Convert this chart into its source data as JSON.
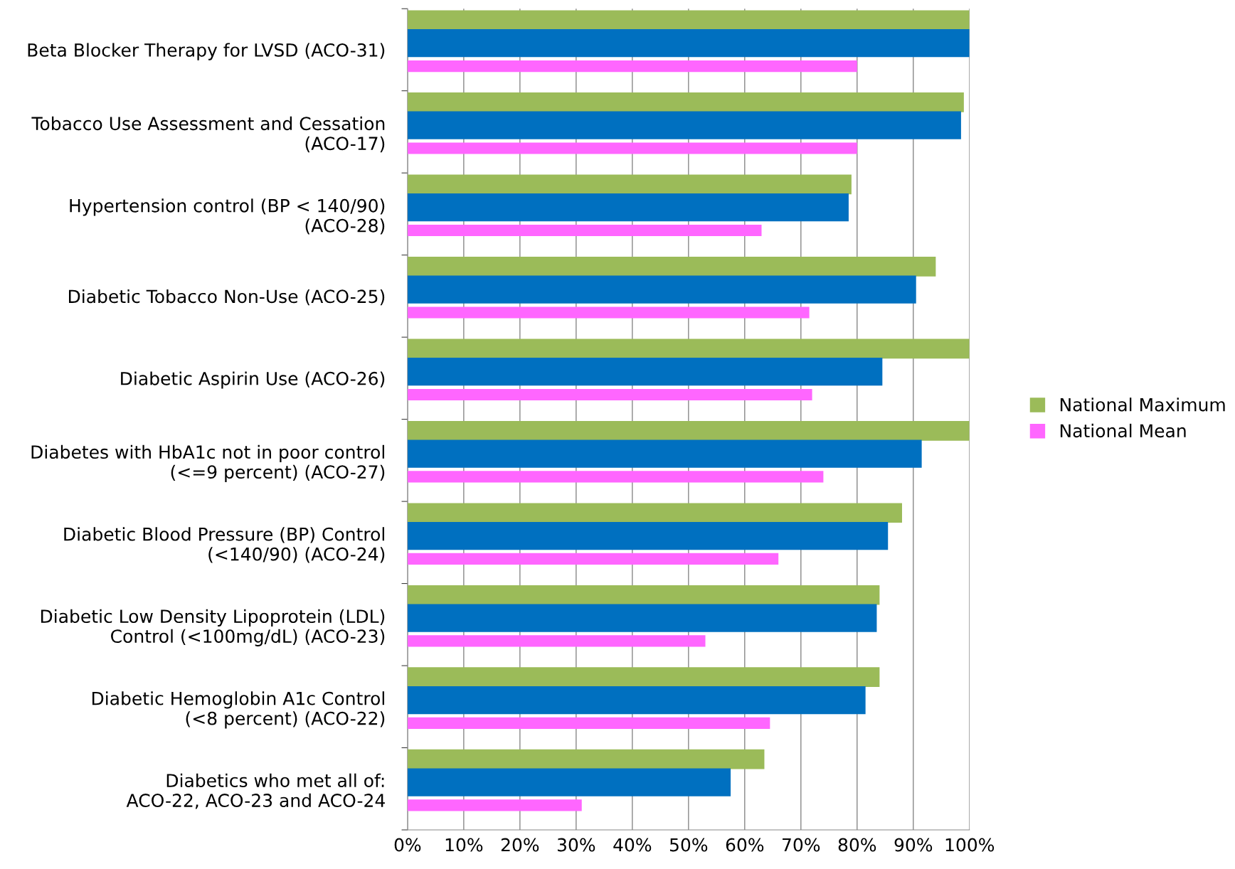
{
  "chart_data": {
    "type": "bar",
    "orientation": "horizontal",
    "categories": [
      "Beta Blocker Therapy for LVSD (ACO-31)",
      "Tobacco Use Assessment and Cessation\n(ACO-17)",
      "Hypertension control (BP < 140/90)\n(ACO-28)",
      "Diabetic Tobacco Non-Use (ACO-25)",
      "Diabetic Aspirin Use (ACO-26)",
      "Diabetes with HbA1c not in poor control\n(<=9 percent) (ACO-27)",
      "Diabetic Blood Pressure (BP) Control\n(<140/90) (ACO-24)",
      "Diabetic Low Density Lipoprotein (LDL)\nControl (<100mg/dL) (ACO-23)",
      "Diabetic Hemoglobin A1c Control\n(<8 percent) (ACO-22)",
      "Diabetics who met all of:\nACO-22, ACO-23 and ACO-24"
    ],
    "series": [
      {
        "name": "National Maximum",
        "color": "#9bbb59",
        "values": [
          100,
          99,
          79,
          94,
          100,
          100,
          88,
          84,
          84,
          63.5
        ]
      },
      {
        "color": "#0070c0",
        "values": [
          100,
          98.5,
          78.5,
          90.5,
          84.5,
          91.5,
          85.5,
          83.5,
          81.5,
          57.5
        ]
      },
      {
        "name": "National Mean",
        "color": "#ff66ff",
        "values": [
          80,
          80,
          63,
          71.5,
          72,
          74,
          66,
          53,
          64.5,
          31
        ]
      }
    ],
    "xlim": [
      0,
      100
    ],
    "xticks": [
      {
        "value": 0,
        "label": "0%"
      },
      {
        "value": 10,
        "label": "10%"
      },
      {
        "value": 20,
        "label": "20%"
      },
      {
        "value": 30,
        "label": "30%"
      },
      {
        "value": 40,
        "label": "40%"
      },
      {
        "value": 50,
        "label": "50%"
      },
      {
        "value": 60,
        "label": "60%"
      },
      {
        "value": 70,
        "label": "70%"
      },
      {
        "value": 80,
        "label": "80%"
      },
      {
        "value": 90,
        "label": "90%"
      },
      {
        "value": 100,
        "label": "100%"
      }
    ],
    "grid": "x",
    "legend": "right"
  }
}
